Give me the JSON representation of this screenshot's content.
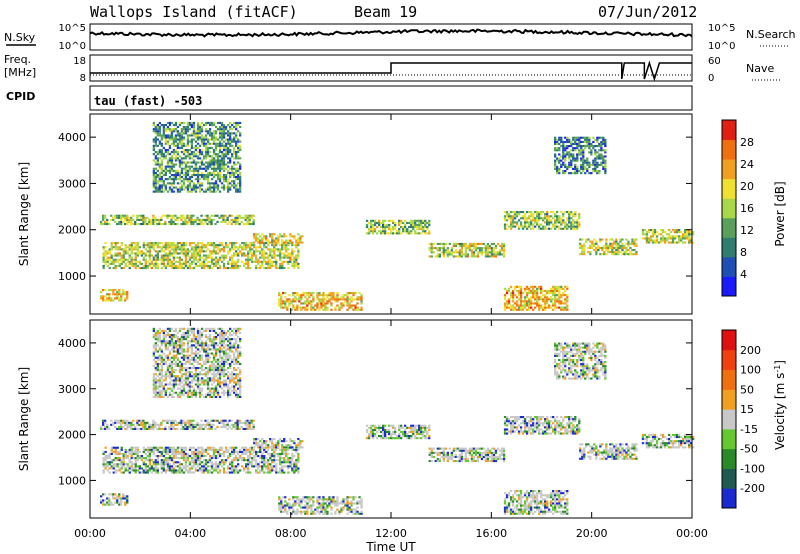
{
  "header": {
    "station": "Wallops Island (fitACF)",
    "beam": "Beam 19",
    "date": "07/Jun/2012"
  },
  "params": {
    "nsky_label": "N.Sky",
    "nsky_ticks": [
      "10^5",
      "10^0"
    ],
    "nsearch_label": "N.Search",
    "nsearch_ticks": [
      "10^5",
      "10^0"
    ],
    "freq_label": "Freq.",
    "freq_unit": "[MHz]",
    "freq_ticks": [
      "18",
      "8"
    ],
    "nave_label": "Nave",
    "nave_ticks": [
      "60",
      "0"
    ],
    "cpid_label": "CPID",
    "cpid_text": "tau (fast) -503"
  },
  "chart_data": [
    {
      "type": "heatmap",
      "name": "power",
      "ylabel": "Slant Range [km]",
      "xlabel": "Time UT",
      "x_ticks": [
        "00:00",
        "04:00",
        "08:00",
        "12:00",
        "16:00",
        "20:00",
        "00:00"
      ],
      "x_range_hours": [
        0,
        24
      ],
      "y_ticks": [
        1000,
        2000,
        3000,
        4000
      ],
      "ylim": [
        180,
        4500
      ],
      "colorbar": {
        "label": "Power [dB]",
        "ticks": [
          4,
          8,
          12,
          16,
          20,
          24,
          28
        ],
        "range": [
          0,
          32
        ],
        "colors": [
          "#1a1aff",
          "#1f4fb4",
          "#2e7d6e",
          "#5aa05a",
          "#a8d84a",
          "#f0e030",
          "#f0a020",
          "#f07010",
          "#e02010"
        ]
      },
      "echo_bands": [
        {
          "t": [
            0.4,
            6.5
          ],
          "r": [
            2100,
            2300
          ],
          "level": 22
        },
        {
          "t": [
            0.5,
            8.3
          ],
          "r": [
            1150,
            1700
          ],
          "level": 24
        },
        {
          "t": [
            6.5,
            8.5
          ],
          "r": [
            1700,
            1900
          ],
          "level": 26
        },
        {
          "t": [
            0.4,
            1.5
          ],
          "r": [
            450,
            700
          ],
          "level": 28
        },
        {
          "t": [
            7.5,
            10.8
          ],
          "r": [
            250,
            650
          ],
          "level": 28
        },
        {
          "t": [
            11,
            13.5
          ],
          "r": [
            1900,
            2200
          ],
          "level": 22
        },
        {
          "t": [
            13.5,
            16.5
          ],
          "r": [
            1400,
            1700
          ],
          "level": 24
        },
        {
          "t": [
            16.5,
            19.5
          ],
          "r": [
            2000,
            2400
          ],
          "level": 22
        },
        {
          "t": [
            16.5,
            19
          ],
          "r": [
            250,
            750
          ],
          "level": 28
        },
        {
          "t": [
            19.5,
            21.8
          ],
          "r": [
            1450,
            1800
          ],
          "level": 24
        },
        {
          "t": [
            22,
            24
          ],
          "r": [
            1700,
            2000
          ],
          "level": 24
        },
        {
          "t": [
            2.5,
            6
          ],
          "r": [
            2800,
            4300
          ],
          "level": 18
        },
        {
          "t": [
            18.5,
            20.5
          ],
          "r": [
            3200,
            4000
          ],
          "level": 16
        }
      ]
    },
    {
      "type": "heatmap",
      "name": "velocity",
      "ylabel": "Slant Range [km]",
      "xlabel": "Time UT",
      "x_ticks": [
        "00:00",
        "04:00",
        "08:00",
        "12:00",
        "16:00",
        "20:00",
        "00:00"
      ],
      "x_range_hours": [
        0,
        24
      ],
      "y_ticks": [
        1000,
        2000,
        3000,
        4000
      ],
      "ylim": [
        180,
        4500
      ],
      "colorbar": {
        "label": "Velocity [m s",
        "label_superscript": "-1",
        "label_close": "]",
        "ticks": [
          200,
          100,
          50,
          15,
          -15,
          -50,
          -100,
          -200
        ],
        "colors": [
          "#1a2ad0",
          "#1f5a50",
          "#2a8a2a",
          "#66c830",
          "#c8c8c8",
          "#f0a020",
          "#f07010",
          "#f04010",
          "#e01010"
        ]
      }
    }
  ]
}
